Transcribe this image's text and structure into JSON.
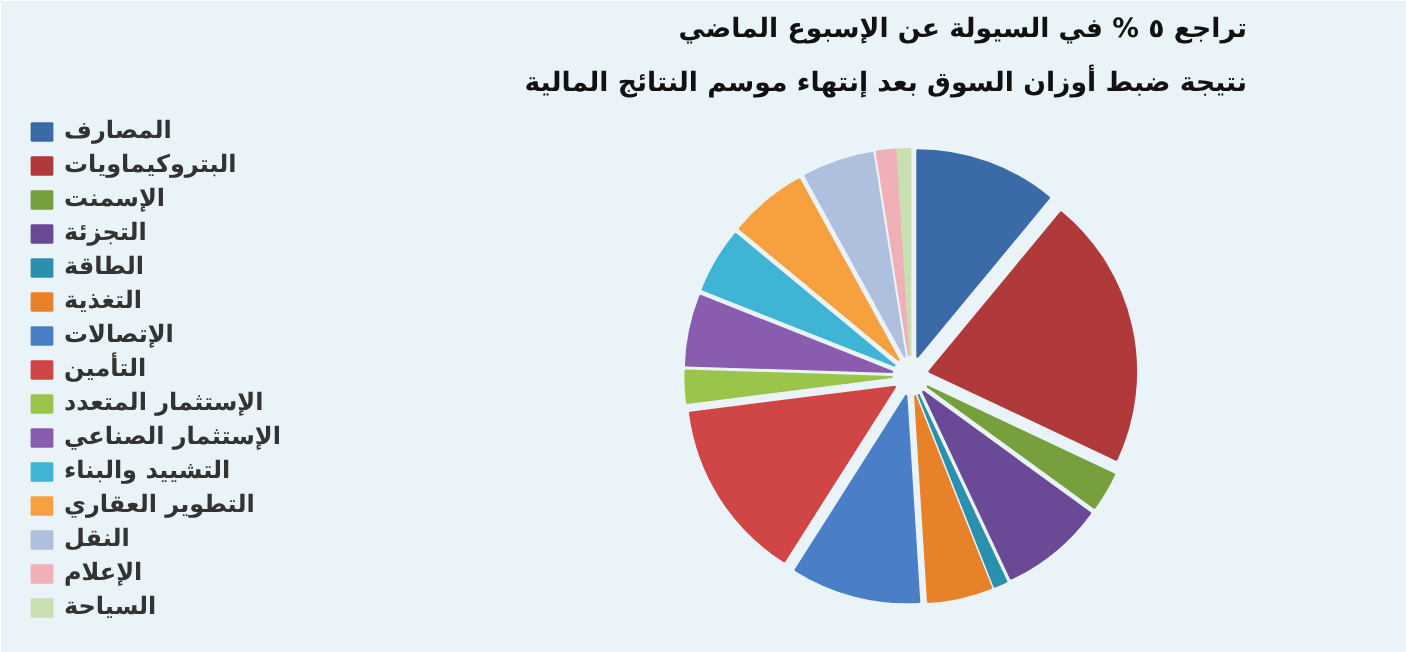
{
  "chart_data": {
    "type": "pie",
    "title": "تراجع ٥ % في السيولة عن الإسبوع الماضي",
    "subtitle": "نتيجة ضبط أوزان السوق بعد إنتهاء موسم النتائج المالية",
    "categories": [
      "المصارف",
      "البتروكيماويات",
      "الإسمنت",
      "التجزئة",
      "الطاقة",
      "التغذية",
      "الإتصالات",
      "التأمين",
      "الإستثمار المتعدد",
      "الإستثمار الصناعي",
      "التشييد والبناء",
      "التطوير العقاري",
      "النقل",
      "الإعلام",
      "السياحة"
    ],
    "values": [
      11,
      21,
      3,
      8,
      1,
      5,
      10,
      14,
      2.5,
      5.5,
      5,
      6,
      5.5,
      1.5,
      1
    ],
    "colors": [
      "#3a6aa8",
      "#b03a3a",
      "#77a03c",
      "#6a4a96",
      "#2b8fae",
      "#e8822a",
      "#4a7fc8",
      "#d04545",
      "#9bc54a",
      "#8a5cb0",
      "#3fb4d4",
      "#f7a040",
      "#aec0de",
      "#f0b0b8",
      "#c8e0b0"
    ],
    "legend": "left"
  }
}
